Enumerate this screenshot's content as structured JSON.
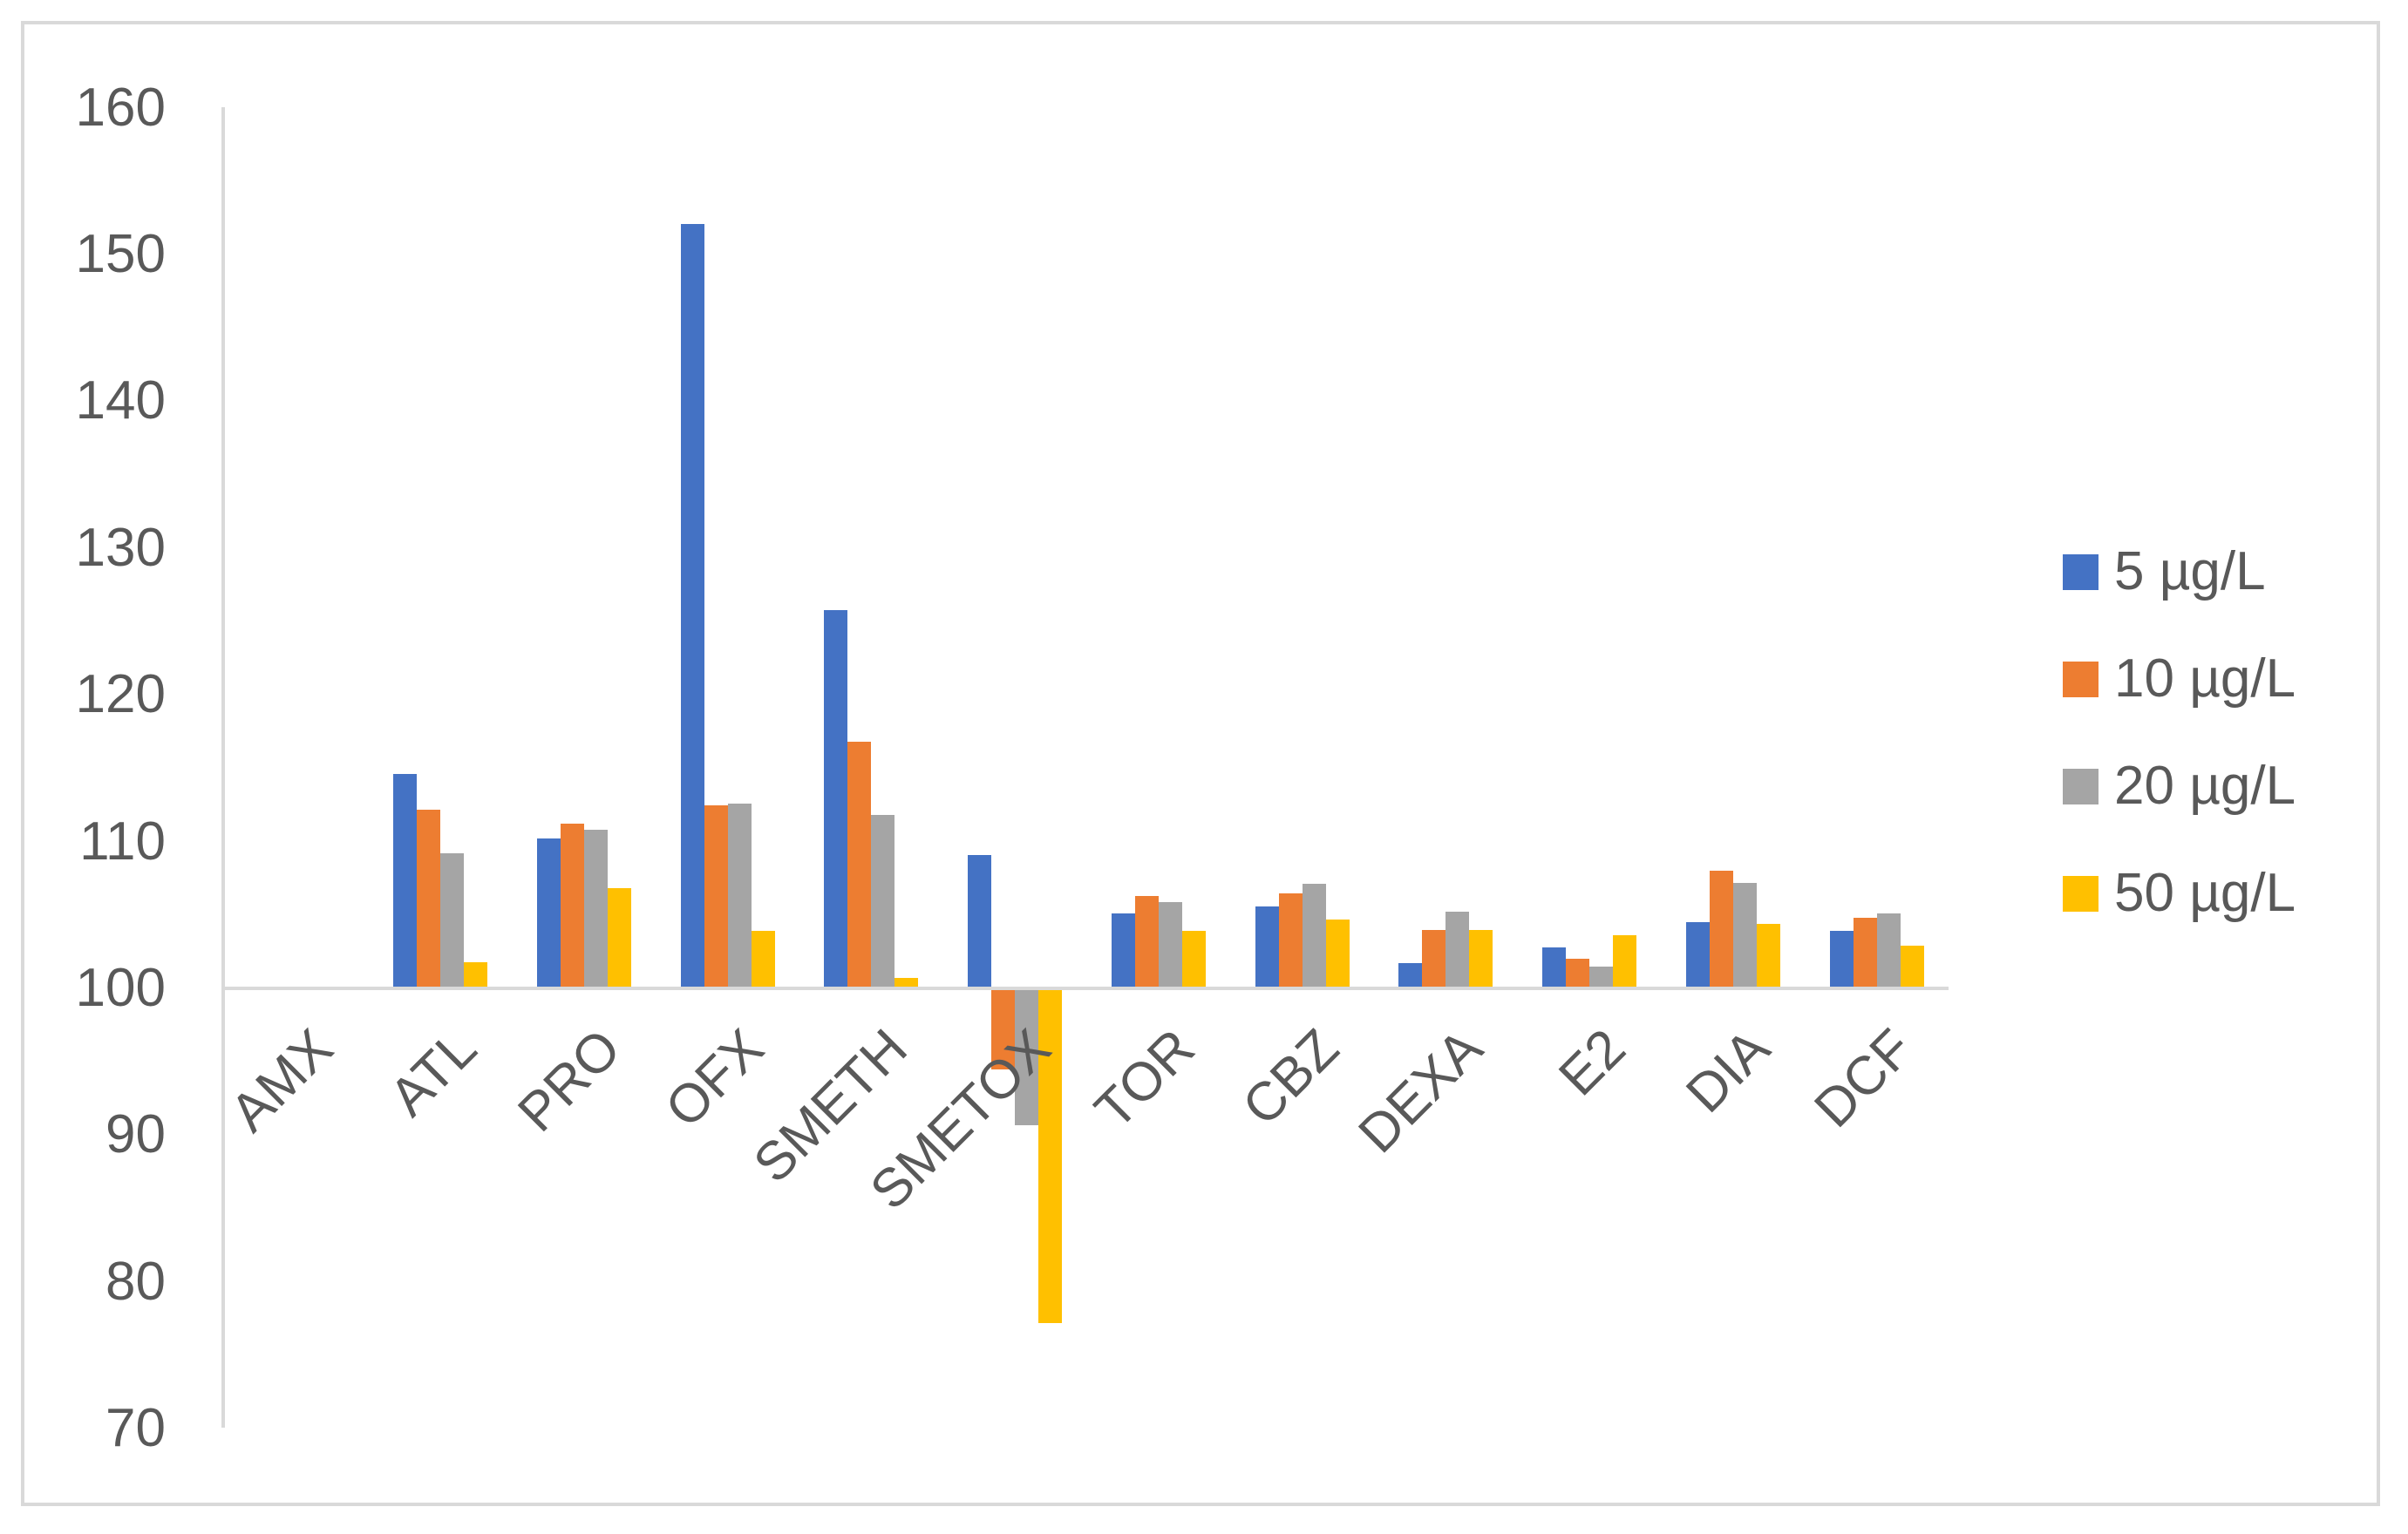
{
  "chart_data": {
    "type": "bar",
    "title": "",
    "xlabel": "",
    "ylabel": "",
    "categories": [
      "AMX",
      "ATL",
      "PRO",
      "OFX",
      "SMETH",
      "SMETOX",
      "TOR",
      "CBZ",
      "DEXA",
      "E2",
      "DIA",
      "DCF"
    ],
    "series": [
      {
        "name": "5 µg/L",
        "color": "#4472C4",
        "values": [
          100,
          114.6,
          110.2,
          152.1,
          125.8,
          109.1,
          105.1,
          105.6,
          101.7,
          102.8,
          104.5,
          103.9
        ]
      },
      {
        "name": "10 µg/L",
        "color": "#ED7D31",
        "values": [
          100,
          112.2,
          111.2,
          112.5,
          116.8,
          94.5,
          106.3,
          106.5,
          104.0,
          102.0,
          108.0,
          104.8
        ]
      },
      {
        "name": "20 µg/L",
        "color": "#A5A5A5",
        "values": [
          100,
          109.2,
          110.8,
          112.6,
          111.8,
          90.7,
          105.9,
          107.1,
          105.2,
          101.5,
          107.2,
          105.1
        ]
      },
      {
        "name": "50 µg/L",
        "color": "#FFC000",
        "values": [
          100,
          101.8,
          106.8,
          103.9,
          100.7,
          77.2,
          103.9,
          104.7,
          104.0,
          103.6,
          104.4,
          102.9
        ]
      }
    ],
    "baseline": 100,
    "ylim": [
      70,
      160
    ],
    "yticks": [
      160,
      150,
      140,
      130,
      120,
      110,
      100,
      90,
      80,
      70
    ],
    "grid": false,
    "legend_position": "right",
    "colors": {
      "axis_line": "#D9D9D9",
      "plot_border": "#D9D9D9",
      "tick_text": "#595959",
      "background": "#FFFFFF"
    }
  }
}
